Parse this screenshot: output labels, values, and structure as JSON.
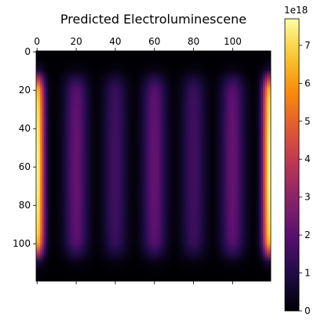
{
  "chart_data": {
    "type": "heatmap",
    "title": "Predicted Electroluminescene",
    "colormap": "inferno",
    "extent": {
      "cols": 120,
      "rows": 120
    },
    "x_ticks": [
      "0",
      "20",
      "40",
      "60",
      "80",
      "100"
    ],
    "x_tick_values": [
      0,
      20,
      40,
      60,
      80,
      100
    ],
    "y_ticks": [
      "0",
      "20",
      "40",
      "60",
      "80",
      "100"
    ],
    "y_tick_values": [
      0,
      20,
      40,
      60,
      80,
      100
    ],
    "x_axis_position": "top",
    "bottom_ticks_unlabeled": true,
    "emission_row_range": [
      14,
      106
    ],
    "column_peaks": [
      {
        "x": 0,
        "peak": 7.7
      },
      {
        "x": 20,
        "peak": 2.2
      },
      {
        "x": 40,
        "peak": 1.6
      },
      {
        "x": 60,
        "peak": 2.2
      },
      {
        "x": 80,
        "peak": 1.6
      },
      {
        "x": 100,
        "peak": 2.2
      },
      {
        "x": 119,
        "peak": 7.7
      }
    ],
    "colorbar": {
      "min": 0,
      "max": 7.7,
      "ticks": [
        "0",
        "1",
        "2",
        "3",
        "4",
        "5",
        "6",
        "7"
      ],
      "tick_values": [
        0,
        1,
        2,
        3,
        4,
        5,
        6,
        7
      ],
      "multiplier": "1e18"
    }
  }
}
